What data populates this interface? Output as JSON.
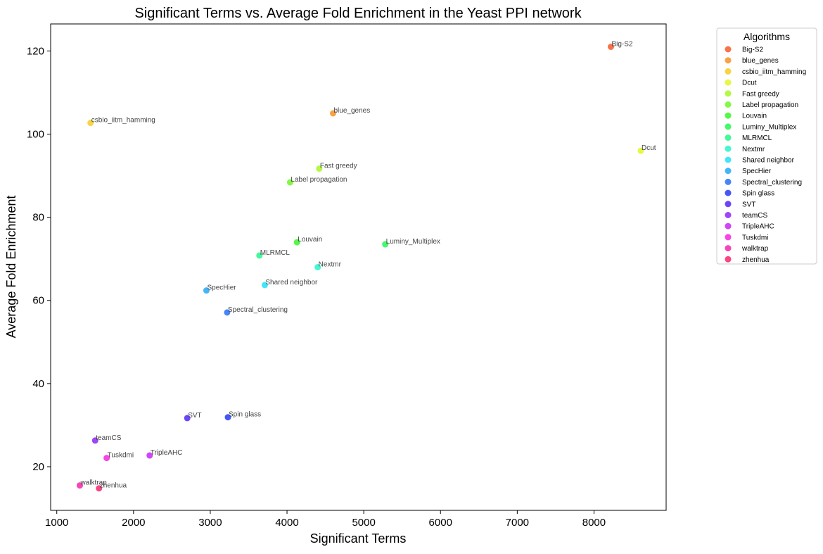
{
  "chart_data": {
    "type": "scatter",
    "title": "Significant Terms vs. Average Fold Enrichment in the Yeast PPI network",
    "xlabel": "Significant Terms",
    "ylabel": "Average Fold Enrichment",
    "xlim": [
      920,
      8940
    ],
    "ylim": [
      9.5,
      126.5
    ],
    "xticks": [
      1000,
      2000,
      3000,
      4000,
      5000,
      6000,
      7000,
      8000
    ],
    "yticks": [
      20,
      40,
      60,
      80,
      100,
      120
    ],
    "grid": false,
    "legend": {
      "title": "Algorithms",
      "placement": "outside-top-right"
    },
    "points": [
      {
        "name": "Big-S2",
        "x": 8220,
        "y": 121.0,
        "color": "#f75a2a"
      },
      {
        "name": "blue_genes",
        "x": 4600,
        "y": 105.0,
        "color": "#f79225"
      },
      {
        "name": "csbio_iitm_hamming",
        "x": 1440,
        "y": 102.7,
        "color": "#f7cc25"
      },
      {
        "name": "Dcut",
        "x": 8610,
        "y": 96.0,
        "color": "#e0f725"
      },
      {
        "name": "Fast greedy",
        "x": 4420,
        "y": 91.7,
        "color": "#a8f725"
      },
      {
        "name": "Label propagation",
        "x": 4040,
        "y": 88.4,
        "color": "#70f725"
      },
      {
        "name": "Louvain",
        "x": 4130,
        "y": 74.0,
        "color": "#38f725"
      },
      {
        "name": "Luminy_Multiplex",
        "x": 5280,
        "y": 73.5,
        "color": "#25f752"
      },
      {
        "name": "MLRMCL",
        "x": 3640,
        "y": 70.8,
        "color": "#25f78d"
      },
      {
        "name": "Nextmr",
        "x": 4400,
        "y": 68.0,
        "color": "#25f7c8"
      },
      {
        "name": "Shared neighbor",
        "x": 3710,
        "y": 63.7,
        "color": "#25e0f7"
      },
      {
        "name": "SpecHier",
        "x": 2950,
        "y": 62.4,
        "color": "#25a8f7"
      },
      {
        "name": "Spectral_clustering",
        "x": 3220,
        "y": 57.1,
        "color": "#2570f7"
      },
      {
        "name": "Spin glass",
        "x": 3230,
        "y": 31.9,
        "color": "#2538f7"
      },
      {
        "name": "SVT",
        "x": 2700,
        "y": 31.7,
        "color": "#5225f7"
      },
      {
        "name": "teamCS",
        "x": 1500,
        "y": 26.3,
        "color": "#8d25f7"
      },
      {
        "name": "TripleAHC",
        "x": 2210,
        "y": 22.7,
        "color": "#c825f7"
      },
      {
        "name": "Tuskdmi",
        "x": 1650,
        "y": 22.1,
        "color": "#f725e0"
      },
      {
        "name": "walktrap",
        "x": 1300,
        "y": 15.5,
        "color": "#f725a8"
      },
      {
        "name": "zhenhua",
        "x": 1550,
        "y": 14.8,
        "color": "#f72570"
      }
    ]
  }
}
